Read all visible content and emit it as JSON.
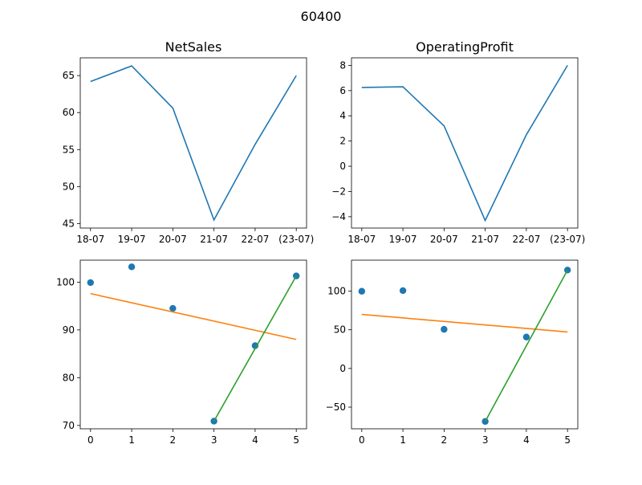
{
  "figure_title": "60400",
  "chart_data": [
    {
      "type": "line",
      "title": "NetSales",
      "categories": [
        "18-07",
        "19-07",
        "20-07",
        "21-07",
        "22-07",
        "(23-07)"
      ],
      "ylim": [
        44.4,
        67.4
      ],
      "yticks": [
        45,
        50,
        55,
        60,
        65
      ],
      "series": [
        {
          "color": "#1f77b4",
          "values": [
            64.2,
            66.3,
            60.6,
            45.5,
            55.7,
            65.0
          ]
        }
      ],
      "grid": false
    },
    {
      "type": "line",
      "title": "OperatingProfit",
      "categories": [
        "18-07",
        "19-07",
        "20-07",
        "21-07",
        "22-07",
        "(23-07)"
      ],
      "ylim": [
        -4.9,
        8.6
      ],
      "yticks": [
        -4,
        -2,
        0,
        2,
        4,
        6,
        8
      ],
      "series": [
        {
          "color": "#1f77b4",
          "values": [
            6.25,
            6.3,
            3.2,
            -4.3,
            2.5,
            8.0
          ]
        }
      ],
      "grid": false
    },
    {
      "type": "scatter",
      "title": "",
      "x": [
        0,
        1,
        2,
        3,
        4,
        5
      ],
      "xlim": [
        -0.25,
        5.25
      ],
      "xticks": [
        0,
        1,
        2,
        3,
        4,
        5
      ],
      "ylim": [
        69.3,
        104.6
      ],
      "yticks": [
        70,
        80,
        90,
        100
      ],
      "points": {
        "color": "#1f77b4",
        "values": [
          99.9,
          103.2,
          94.5,
          70.9,
          86.7,
          101.3
        ]
      },
      "lines": [
        {
          "color": "#ff7f0e",
          "x": [
            0,
            5
          ],
          "y": [
            97.6,
            88.0
          ]
        },
        {
          "color": "#2ca02c",
          "x": [
            3,
            5
          ],
          "y": [
            70.9,
            101.3
          ]
        }
      ],
      "grid": false
    },
    {
      "type": "scatter",
      "title": "",
      "x": [
        0,
        1,
        2,
        3,
        4,
        5
      ],
      "xlim": [
        -0.25,
        5.25
      ],
      "xticks": [
        0,
        1,
        2,
        3,
        4,
        5
      ],
      "ylim": [
        -78,
        140
      ],
      "yticks": [
        -50,
        0,
        50,
        100
      ],
      "points": {
        "color": "#1f77b4",
        "values": [
          99.8,
          100.6,
          50.6,
          -68.5,
          40.6,
          127.2
        ]
      },
      "lines": [
        {
          "color": "#ff7f0e",
          "x": [
            0,
            5
          ],
          "y": [
            69.9,
            47.2
          ]
        },
        {
          "color": "#2ca02c",
          "x": [
            3,
            5
          ],
          "y": [
            -68.5,
            127.2
          ]
        }
      ],
      "grid": false
    }
  ]
}
